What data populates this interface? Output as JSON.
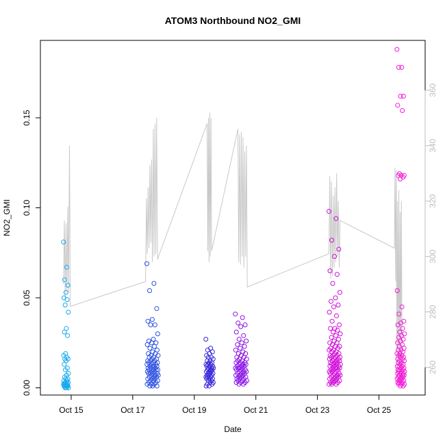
{
  "chart_data": {
    "type": "scatter",
    "title": "ATOM3 Northbound NO2_GMI",
    "xlabel": "Date",
    "ylabel": "NO2_GMI",
    "xlim": [
      "2017-10-14 00:00",
      "2017-10-26 12:00"
    ],
    "ylim": [
      -0.004,
      0.193
    ],
    "y2lim": [
      250,
      378
    ],
    "grid": false,
    "x_ticks": [
      {
        "label": "Oct 15",
        "value": "2017-10-15 00:00"
      },
      {
        "label": "Oct 17",
        "value": "2017-10-17 00:00"
      },
      {
        "label": "Oct 19",
        "value": "2017-10-19 00:00"
      },
      {
        "label": "Oct 21",
        "value": "2017-10-21 00:00"
      },
      {
        "label": "Oct 23",
        "value": "2017-10-23 00:00"
      },
      {
        "label": "Oct 25",
        "value": "2017-10-25 00:00"
      }
    ],
    "y_ticks": [
      "0.00",
      "0.05",
      "0.10",
      "0.15"
    ],
    "y2_ticks": [
      "260",
      "280",
      "300",
      "320",
      "340",
      "360"
    ],
    "point_colors": [
      "#17a9ef",
      "#2a4fe0",
      "#3525d8",
      "#8a12e6",
      "#d10ad8",
      "#f21ad6"
    ],
    "flights": [
      {
        "color": "#17a9ef",
        "start": "2017-10-14 18:00",
        "end": "2017-10-14 22:00",
        "no2": [
          0.081,
          0.067,
          0.06,
          0.057,
          0.053,
          0.05,
          0.049,
          0.046,
          0.042,
          0.033,
          0.031,
          0.029,
          0.019,
          0.018,
          0.017,
          0.016,
          0.016,
          0.015,
          0.013,
          0.011,
          0.01,
          0.008,
          0.007,
          0.006,
          0.005,
          0.005,
          0.004,
          0.004,
          0.003,
          0.003,
          0.003,
          0.002,
          0.002,
          0.002,
          0.002,
          0.001,
          0.001,
          0.001,
          0.001,
          0.001,
          0.001,
          0.0,
          0.0,
          0.0
        ]
      },
      {
        "color": "#2a4fe0",
        "start": "2017-10-17 11:00",
        "end": "2017-10-17 20:00",
        "no2": [
          0.069,
          0.058,
          0.054,
          0.044,
          0.038,
          0.037,
          0.035,
          0.035,
          0.03,
          0.027,
          0.026,
          0.025,
          0.025,
          0.024,
          0.023,
          0.022,
          0.021,
          0.02,
          0.019,
          0.019,
          0.018,
          0.018,
          0.017,
          0.017,
          0.016,
          0.016,
          0.015,
          0.015,
          0.015,
          0.014,
          0.014,
          0.014,
          0.013,
          0.013,
          0.013,
          0.012,
          0.012,
          0.012,
          0.012,
          0.011,
          0.011,
          0.011,
          0.01,
          0.01,
          0.01,
          0.01,
          0.009,
          0.009,
          0.009,
          0.008,
          0.008,
          0.008,
          0.008,
          0.007,
          0.007,
          0.007,
          0.006,
          0.006,
          0.006,
          0.005,
          0.005,
          0.005,
          0.004,
          0.004,
          0.004,
          0.003,
          0.003,
          0.002,
          0.002,
          0.002,
          0.001,
          0.001,
          0.001
        ]
      },
      {
        "color": "#3525d8",
        "start": "2017-10-19 09:00",
        "end": "2017-10-19 15:00",
        "no2": [
          0.027,
          0.022,
          0.021,
          0.02,
          0.019,
          0.018,
          0.017,
          0.017,
          0.016,
          0.015,
          0.015,
          0.014,
          0.014,
          0.013,
          0.013,
          0.013,
          0.012,
          0.012,
          0.012,
          0.011,
          0.011,
          0.011,
          0.01,
          0.01,
          0.01,
          0.009,
          0.009,
          0.009,
          0.008,
          0.008,
          0.008,
          0.007,
          0.007,
          0.007,
          0.006,
          0.006,
          0.006,
          0.005,
          0.005,
          0.005,
          0.004,
          0.004,
          0.003,
          0.003,
          0.002,
          0.002,
          0.001,
          0.001
        ]
      },
      {
        "color": "#8a12e6",
        "start": "2017-10-20 08:00",
        "end": "2017-10-20 17:00",
        "no2": [
          0.041,
          0.039,
          0.036,
          0.035,
          0.034,
          0.031,
          0.029,
          0.027,
          0.026,
          0.025,
          0.024,
          0.023,
          0.022,
          0.021,
          0.02,
          0.019,
          0.019,
          0.018,
          0.017,
          0.017,
          0.016,
          0.016,
          0.015,
          0.015,
          0.014,
          0.014,
          0.014,
          0.013,
          0.013,
          0.013,
          0.012,
          0.012,
          0.012,
          0.011,
          0.011,
          0.011,
          0.011,
          0.01,
          0.01,
          0.01,
          0.009,
          0.009,
          0.009,
          0.008,
          0.008,
          0.008,
          0.007,
          0.007,
          0.007,
          0.006,
          0.006,
          0.006,
          0.005,
          0.005,
          0.005,
          0.004,
          0.004,
          0.004,
          0.003,
          0.003,
          0.003,
          0.002,
          0.002
        ]
      },
      {
        "color": "#d10ad8",
        "start": "2017-10-23 09:00",
        "end": "2017-10-23 18:00",
        "no2": [
          0.098,
          0.094,
          0.082,
          0.077,
          0.073,
          0.065,
          0.063,
          0.058,
          0.053,
          0.05,
          0.048,
          0.046,
          0.045,
          0.042,
          0.04,
          0.037,
          0.035,
          0.033,
          0.033,
          0.032,
          0.031,
          0.03,
          0.029,
          0.028,
          0.027,
          0.026,
          0.025,
          0.025,
          0.024,
          0.023,
          0.023,
          0.022,
          0.022,
          0.021,
          0.021,
          0.02,
          0.02,
          0.019,
          0.019,
          0.018,
          0.018,
          0.018,
          0.017,
          0.017,
          0.017,
          0.016,
          0.016,
          0.016,
          0.015,
          0.015,
          0.015,
          0.014,
          0.014,
          0.014,
          0.013,
          0.013,
          0.013,
          0.013,
          0.012,
          0.012,
          0.012,
          0.011,
          0.011,
          0.011,
          0.011,
          0.01,
          0.01,
          0.01,
          0.009,
          0.009,
          0.009,
          0.008,
          0.008,
          0.008,
          0.007,
          0.007,
          0.007,
          0.006,
          0.006,
          0.006,
          0.005,
          0.005,
          0.005,
          0.004,
          0.004,
          0.004,
          0.003,
          0.003,
          0.003,
          0.002,
          0.002,
          0.002
        ]
      },
      {
        "color": "#f21ad6",
        "start": "2017-10-25 14:00",
        "end": "2017-10-25 20:00",
        "no2": [
          0.188,
          0.178,
          0.178,
          0.162,
          0.162,
          0.157,
          0.154,
          0.119,
          0.118,
          0.118,
          0.118,
          0.117,
          0.116,
          0.054,
          0.045,
          0.041,
          0.037,
          0.036,
          0.035,
          0.033,
          0.031,
          0.03,
          0.029,
          0.028,
          0.027,
          0.026,
          0.025,
          0.024,
          0.023,
          0.022,
          0.021,
          0.021,
          0.02,
          0.019,
          0.019,
          0.018,
          0.018,
          0.017,
          0.017,
          0.016,
          0.016,
          0.015,
          0.015,
          0.014,
          0.014,
          0.013,
          0.013,
          0.012,
          0.012,
          0.012,
          0.011,
          0.011,
          0.01,
          0.01,
          0.01,
          0.009,
          0.009,
          0.009,
          0.008,
          0.008,
          0.008,
          0.007,
          0.007,
          0.007,
          0.006,
          0.006,
          0.006,
          0.005,
          0.005,
          0.005,
          0.004,
          0.004,
          0.004,
          0.003,
          0.003,
          0.003,
          0.002,
          0.002,
          0.002,
          0.001,
          0.001
        ]
      }
    ],
    "secondary_line": {
      "color": "#c8c8c8",
      "points": [
        {
          "t": "2017-10-14 18:00",
          "v": 290
        },
        {
          "t": "2017-10-14 18:40",
          "v": 313
        },
        {
          "t": "2017-10-14 19:20",
          "v": 285
        },
        {
          "t": "2017-10-14 20:00",
          "v": 312
        },
        {
          "t": "2017-10-14 20:40",
          "v": 287
        },
        {
          "t": "2017-10-14 21:20",
          "v": 318
        },
        {
          "t": "2017-10-14 22:00",
          "v": 287
        },
        {
          "t": "2017-10-14 22:40",
          "v": 340
        },
        {
          "t": "2017-10-14 23:20",
          "v": 282
        },
        {
          "t": "2017-10-17 10:00",
          "v": 291
        },
        {
          "t": "2017-10-17 10:40",
          "v": 321
        },
        {
          "t": "2017-10-17 11:20",
          "v": 301
        },
        {
          "t": "2017-10-17 12:00",
          "v": 325
        },
        {
          "t": "2017-10-17 12:40",
          "v": 303
        },
        {
          "t": "2017-10-17 13:20",
          "v": 333
        },
        {
          "t": "2017-10-17 14:00",
          "v": 305
        },
        {
          "t": "2017-10-17 14:40",
          "v": 335
        },
        {
          "t": "2017-10-17 15:20",
          "v": 298
        },
        {
          "t": "2017-10-17 16:00",
          "v": 346
        },
        {
          "t": "2017-10-17 16:40",
          "v": 300
        },
        {
          "t": "2017-10-17 17:20",
          "v": 348
        },
        {
          "t": "2017-10-17 18:00",
          "v": 301
        },
        {
          "t": "2017-10-17 18:40",
          "v": 350
        },
        {
          "t": "2017-10-17 19:20",
          "v": 299
        },
        {
          "t": "2017-10-19 10:00",
          "v": 348
        },
        {
          "t": "2017-10-19 10:30",
          "v": 302
        },
        {
          "t": "2017-10-19 11:00",
          "v": 350
        },
        {
          "t": "2017-10-19 11:30",
          "v": 298
        },
        {
          "t": "2017-10-19 12:00",
          "v": 352
        },
        {
          "t": "2017-10-19 12:30",
          "v": 300
        },
        {
          "t": "2017-10-19 13:00",
          "v": 350
        },
        {
          "t": "2017-10-19 13:30",
          "v": 302
        },
        {
          "t": "2017-10-20 10:00",
          "v": 346
        },
        {
          "t": "2017-10-20 10:40",
          "v": 298
        },
        {
          "t": "2017-10-20 11:20",
          "v": 344
        },
        {
          "t": "2017-10-20 12:00",
          "v": 297
        },
        {
          "t": "2017-10-20 12:40",
          "v": 345
        },
        {
          "t": "2017-10-20 13:20",
          "v": 300
        },
        {
          "t": "2017-10-20 14:00",
          "v": 343
        },
        {
          "t": "2017-10-20 14:40",
          "v": 296
        },
        {
          "t": "2017-10-20 15:20",
          "v": 338
        },
        {
          "t": "2017-10-20 16:00",
          "v": 300
        },
        {
          "t": "2017-10-20 16:40",
          "v": 340
        },
        {
          "t": "2017-10-20 17:20",
          "v": 289
        },
        {
          "t": "2017-10-23 09:00",
          "v": 301
        },
        {
          "t": "2017-10-23 09:40",
          "v": 329
        },
        {
          "t": "2017-10-23 10:20",
          "v": 292
        },
        {
          "t": "2017-10-23 11:00",
          "v": 327
        },
        {
          "t": "2017-10-23 11:40",
          "v": 293
        },
        {
          "t": "2017-10-23 12:20",
          "v": 322
        },
        {
          "t": "2017-10-23 13:00",
          "v": 296
        },
        {
          "t": "2017-10-23 13:40",
          "v": 325
        },
        {
          "t": "2017-10-23 14:20",
          "v": 298
        },
        {
          "t": "2017-10-23 15:00",
          "v": 330
        },
        {
          "t": "2017-10-23 15:40",
          "v": 300
        },
        {
          "t": "2017-10-23 16:20",
          "v": 320
        },
        {
          "t": "2017-10-23 17:00",
          "v": 296
        },
        {
          "t": "2017-10-23 17:40",
          "v": 313
        },
        {
          "t": "2017-10-25 12:00",
          "v": 303
        },
        {
          "t": "2017-10-25 12:30",
          "v": 332
        },
        {
          "t": "2017-10-25 13:00",
          "v": 291
        },
        {
          "t": "2017-10-25 13:30",
          "v": 331
        },
        {
          "t": "2017-10-25 14:00",
          "v": 256
        },
        {
          "t": "2017-10-25 14:30",
          "v": 320
        },
        {
          "t": "2017-10-25 15:00",
          "v": 262
        },
        {
          "t": "2017-10-25 15:30",
          "v": 324
        },
        {
          "t": "2017-10-25 16:00",
          "v": 258
        },
        {
          "t": "2017-10-25 16:30",
          "v": 316
        },
        {
          "t": "2017-10-25 17:00",
          "v": 262
        },
        {
          "t": "2017-10-25 17:30",
          "v": 320
        },
        {
          "t": "2017-10-25 18:00",
          "v": 264
        }
      ]
    }
  }
}
